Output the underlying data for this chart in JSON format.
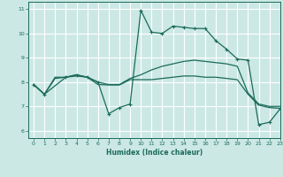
{
  "xlabel": "Humidex (Indice chaleur)",
  "background_color": "#cce8e4",
  "grid_color": "#ffffff",
  "line_color": "#1a6b5a",
  "xlim": [
    -0.5,
    23
  ],
  "ylim": [
    5.7,
    11.3
  ],
  "xticks": [
    0,
    1,
    2,
    3,
    4,
    5,
    6,
    7,
    8,
    9,
    10,
    11,
    12,
    13,
    14,
    15,
    16,
    17,
    18,
    19,
    20,
    21,
    22,
    23
  ],
  "yticks": [
    6,
    7,
    8,
    9,
    10,
    11
  ],
  "curves": [
    {
      "x": [
        0,
        1,
        3,
        4,
        5,
        6,
        7,
        8,
        9,
        10,
        11,
        12,
        13,
        14,
        15,
        16,
        17,
        18,
        19,
        20,
        21,
        22,
        23
      ],
      "y": [
        7.9,
        7.5,
        8.2,
        8.3,
        8.2,
        8.0,
        6.7,
        6.95,
        7.1,
        10.95,
        10.05,
        10.0,
        10.3,
        10.25,
        10.2,
        10.2,
        9.7,
        9.35,
        8.95,
        8.9,
        6.25,
        6.35,
        6.9
      ],
      "marker": "+"
    },
    {
      "x": [
        0,
        1,
        2,
        3,
        4,
        5,
        6,
        7,
        8,
        9,
        10,
        11,
        12,
        13,
        14,
        15,
        16,
        17,
        18,
        19,
        20,
        21,
        22,
        23
      ],
      "y": [
        7.9,
        7.5,
        8.2,
        8.2,
        8.3,
        8.2,
        8.0,
        7.9,
        7.9,
        8.15,
        8.3,
        8.5,
        8.65,
        8.75,
        8.85,
        8.9,
        8.85,
        8.8,
        8.75,
        8.65,
        7.55,
        7.1,
        7.0,
        7.0
      ],
      "marker": null
    },
    {
      "x": [
        0,
        1,
        2,
        3,
        4,
        5,
        6,
        7,
        8,
        9,
        10,
        11,
        12,
        13,
        14,
        15,
        16,
        17,
        18,
        19,
        20,
        21,
        22,
        23
      ],
      "y": [
        7.9,
        7.5,
        8.15,
        8.2,
        8.25,
        8.2,
        7.9,
        7.88,
        7.88,
        8.1,
        8.1,
        8.1,
        8.15,
        8.2,
        8.25,
        8.25,
        8.2,
        8.2,
        8.15,
        8.1,
        7.5,
        7.05,
        6.95,
        6.92
      ],
      "marker": null
    }
  ]
}
